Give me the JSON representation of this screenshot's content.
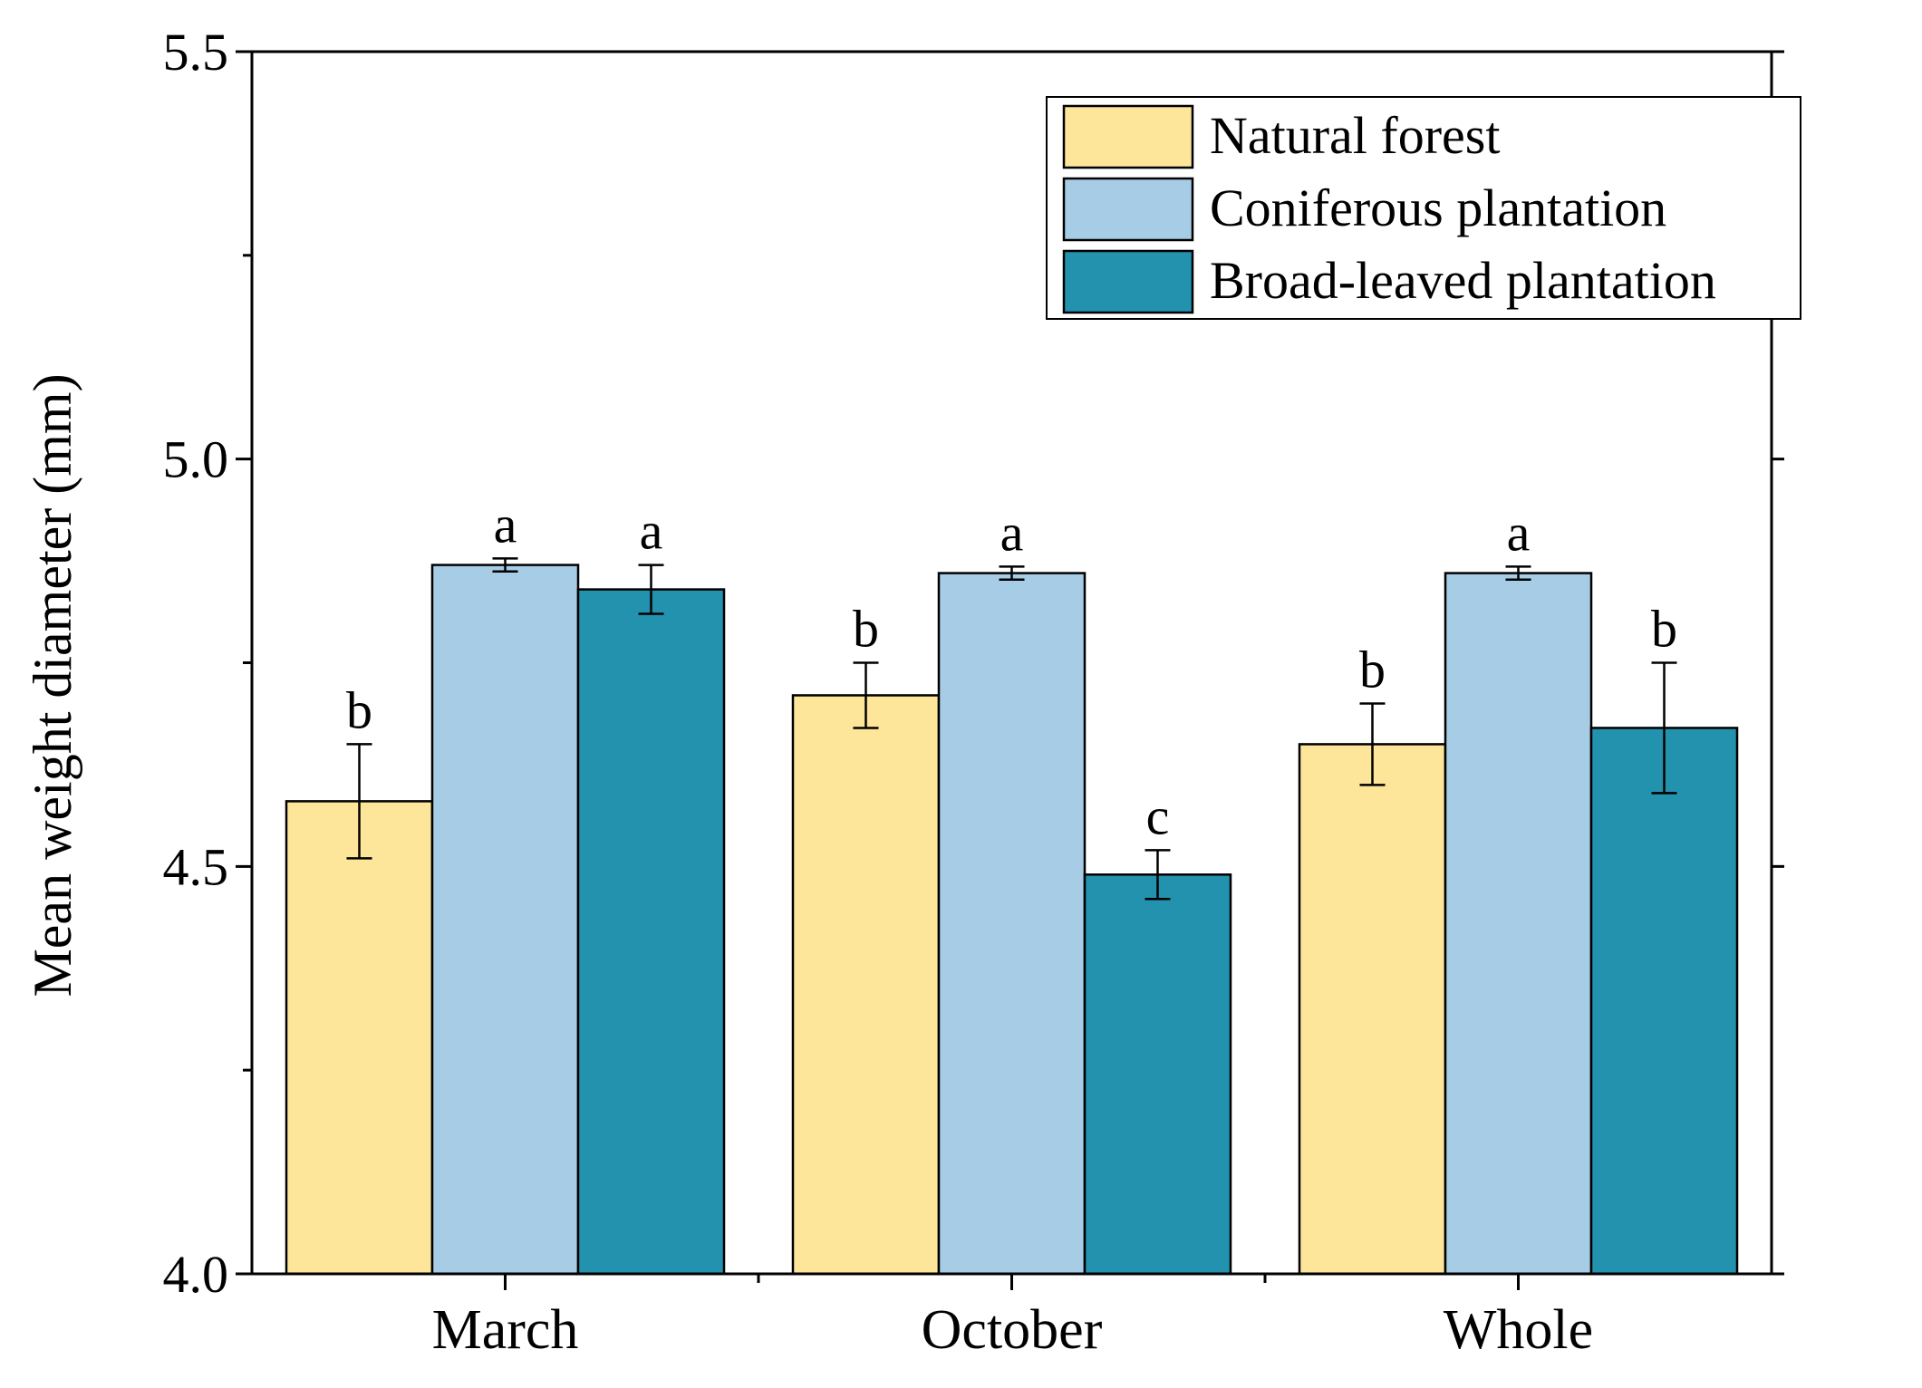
{
  "chart_data": {
    "type": "bar",
    "title": "",
    "xlabel": "",
    "ylabel": "Mean weight diameter (mm)",
    "ylim": [
      4.0,
      5.5
    ],
    "yticks": [
      4.0,
      4.5,
      5.0,
      5.5
    ],
    "ytick_labels": [
      "4.0",
      "4.5",
      "5.0",
      "5.5"
    ],
    "categories": [
      "March",
      "October",
      "Whole"
    ],
    "legend_position": "top-right",
    "grid": false,
    "series": [
      {
        "name": "Natural forest",
        "color": "#FDE59A",
        "values": [
          4.58,
          4.71,
          4.65
        ],
        "errors": [
          0.07,
          0.04,
          0.05
        ],
        "letters": [
          "b",
          "b",
          "b"
        ]
      },
      {
        "name": "Coniferous plantation",
        "color": "#A6CCE6",
        "values": [
          4.87,
          4.86,
          4.86
        ],
        "errors": [
          0.008,
          0.008,
          0.008
        ],
        "letters": [
          "a",
          "a",
          "a"
        ]
      },
      {
        "name": "Broad-leaved plantation",
        "color": "#2292AE",
        "values": [
          4.84,
          4.49,
          4.67
        ],
        "errors": [
          0.03,
          0.03,
          0.08
        ],
        "letters": [
          "a",
          "c",
          "b"
        ]
      }
    ]
  }
}
